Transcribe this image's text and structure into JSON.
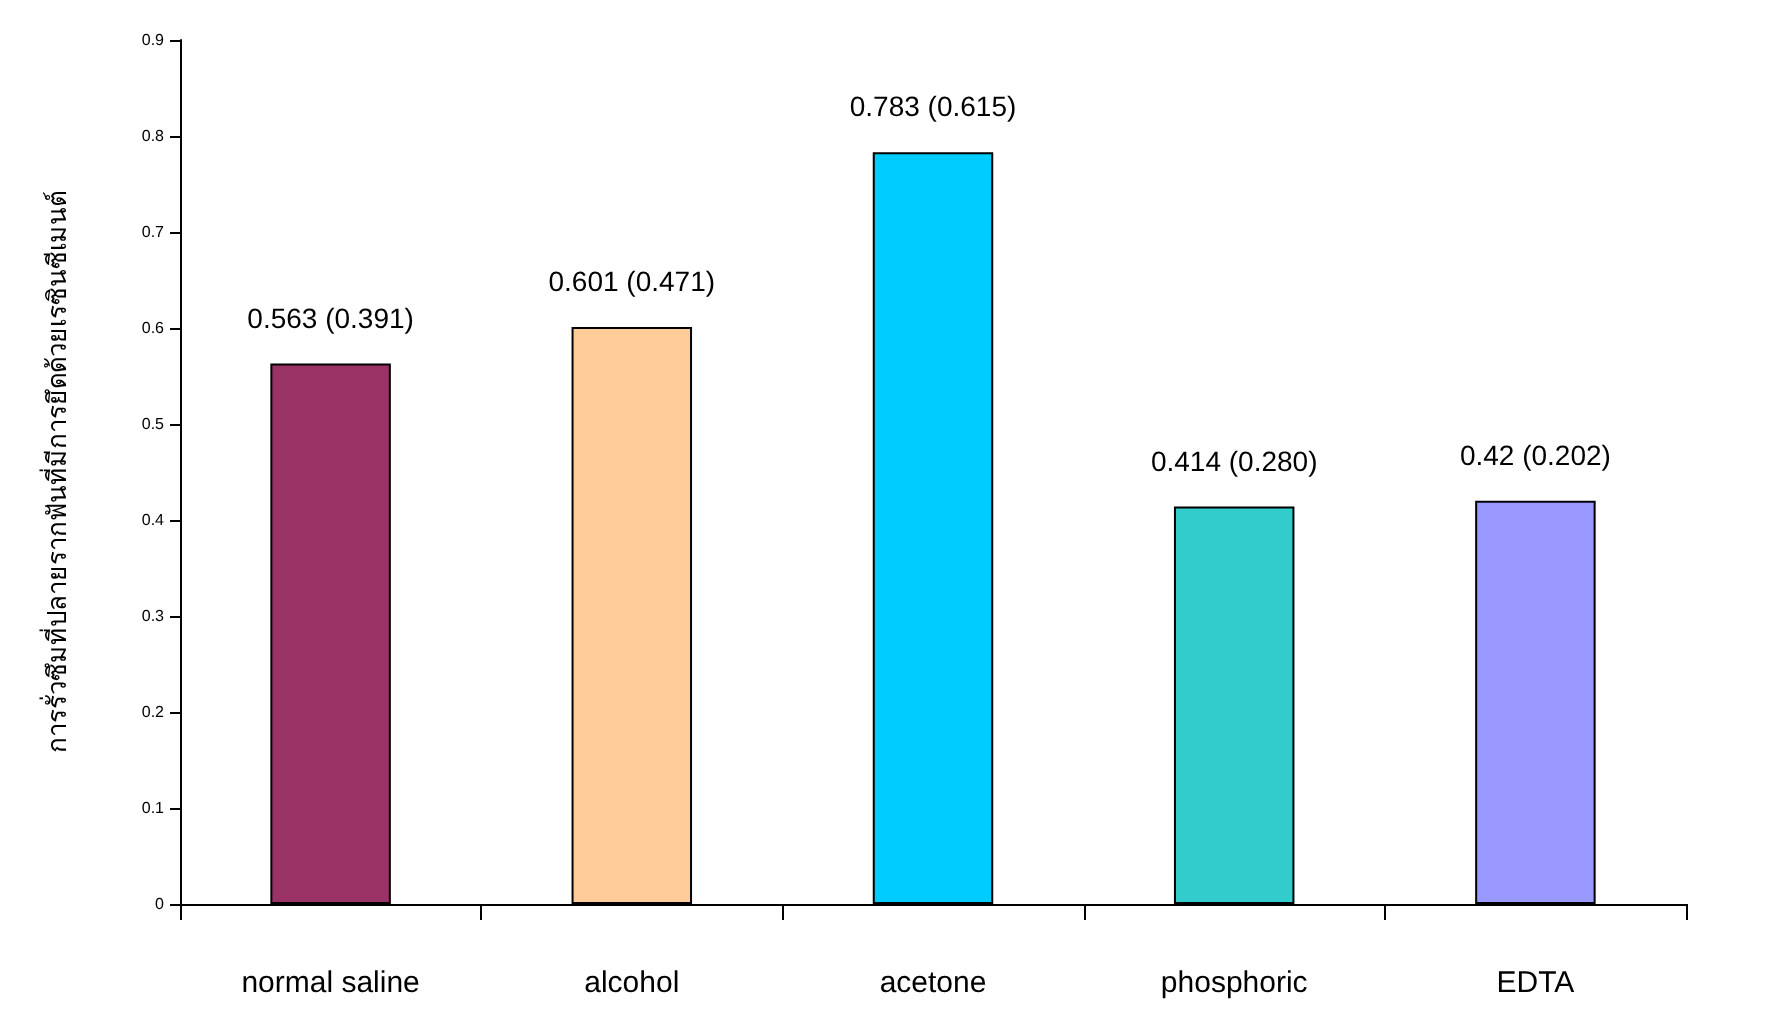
{
  "chart_data": {
    "type": "bar",
    "ylabel": "การรั่วซึมที่ปลายรากฟันที่มีการยึดด้วยเรซินซีเมนต์",
    "categories": [
      "normal saline",
      "alcohol",
      "acetone",
      "phosphoric",
      "EDTA"
    ],
    "values": [
      0.563,
      0.601,
      0.783,
      0.414,
      0.42
    ],
    "colors": [
      "#993366",
      "#ffcc99",
      "#00ccff",
      "#33cccc",
      "#9999ff"
    ],
    "value_labels": [
      "0.563 (0.391)",
      "0.601 (0.471)",
      "0.783 (0.615)",
      "0.414 (0.280)",
      "0.42 (0.202)"
    ],
    "ylim": [
      0,
      0.9
    ],
    "yticks": [
      0,
      0.1,
      0.2,
      0.3,
      0.4,
      0.5,
      0.6,
      0.7,
      0.8,
      0.9
    ],
    "grid": false
  }
}
